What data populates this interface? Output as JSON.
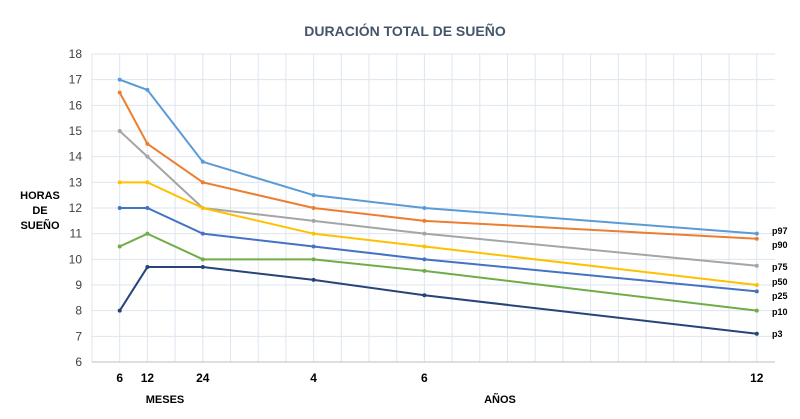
{
  "chart_data": {
    "type": "line",
    "title": "DURACIÓN TOTAL DE SUEÑO",
    "ylabel": [
      "HORAS",
      "DE",
      "SUEÑO"
    ],
    "xlabel_months": "MESES",
    "xlabel_years": "AÑOS",
    "ylim": [
      6,
      18
    ],
    "yticks": [
      6,
      7,
      8,
      9,
      10,
      11,
      12,
      13,
      14,
      15,
      16,
      17,
      18
    ],
    "x_months": [
      6,
      12,
      24,
      48,
      72,
      144
    ],
    "xtick_labels": [
      "6",
      "12",
      "24",
      "4",
      "6",
      "12"
    ],
    "grid": true,
    "legend_placement": "right end of lines",
    "series": [
      {
        "name": "p97",
        "color": "#5b9bd5",
        "values": [
          17,
          16.6,
          13.8,
          12.5,
          12.0,
          11.0
        ]
      },
      {
        "name": "p90",
        "color": "#ed7d31",
        "values": [
          16.5,
          14.5,
          13,
          12,
          11.5,
          10.8
        ]
      },
      {
        "name": "p75",
        "color": "#a5a5a5",
        "values": [
          15,
          14,
          12,
          11.5,
          11,
          9.75
        ]
      },
      {
        "name": "p50",
        "color": "#ffc000",
        "values": [
          13,
          13,
          12,
          11,
          10.5,
          9.0
        ]
      },
      {
        "name": "p25",
        "color": "#4472c4",
        "values": [
          12,
          12,
          11,
          10.5,
          10,
          8.75
        ]
      },
      {
        "name": "p10",
        "color": "#70ad47",
        "values": [
          10.5,
          11,
          10,
          10,
          9.55,
          8.0
        ]
      },
      {
        "name": "p3",
        "color": "#264478",
        "values": [
          8,
          9.7,
          9.7,
          9.2,
          8.6,
          7.1
        ]
      }
    ]
  }
}
